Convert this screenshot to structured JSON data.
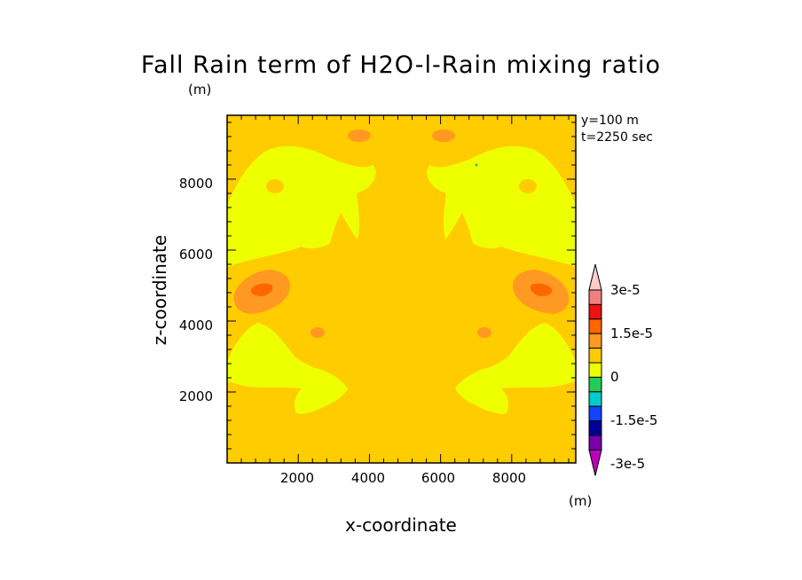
{
  "chart_data": {
    "type": "heatmap",
    "title": "Fall Rain term of H2O-l-Rain mixing ratio",
    "units": "(m)",
    "xlabel": "x-coordinate",
    "ylabel": "z-coordinate",
    "annotations": [
      "y=100 m",
      "t=2250 sec"
    ],
    "xlim": [
      0,
      9800
    ],
    "ylim": [
      0,
      9800
    ],
    "x_ticks": [
      2000,
      4000,
      6000,
      8000
    ],
    "y_ticks": [
      2000,
      4000,
      6000,
      8000
    ],
    "x_tick_labels": [
      "2000",
      "4000",
      "6000",
      "8000"
    ],
    "y_tick_labels": [
      "2000",
      "4000",
      "6000",
      "8000"
    ],
    "colorbar": {
      "labels": [
        "3e-5",
        "1.5e-5",
        "0",
        "-1.5e-5",
        "-3e-5"
      ],
      "unit": "(m)",
      "colors": [
        "#ffcccc",
        "#f08080",
        "#ee1111",
        "#ff6600",
        "#ff9922",
        "#ffcc00",
        "#eeff00",
        "#22cc55",
        "#00cccc",
        "#1144ff",
        "#000099",
        "#7700aa",
        "#bb00bb"
      ]
    },
    "colors": {
      "background_level": "#ffcc00",
      "low_level": "#eeff00",
      "mid_high_level": "#ff9922",
      "high_level": "#ff6600"
    }
  }
}
